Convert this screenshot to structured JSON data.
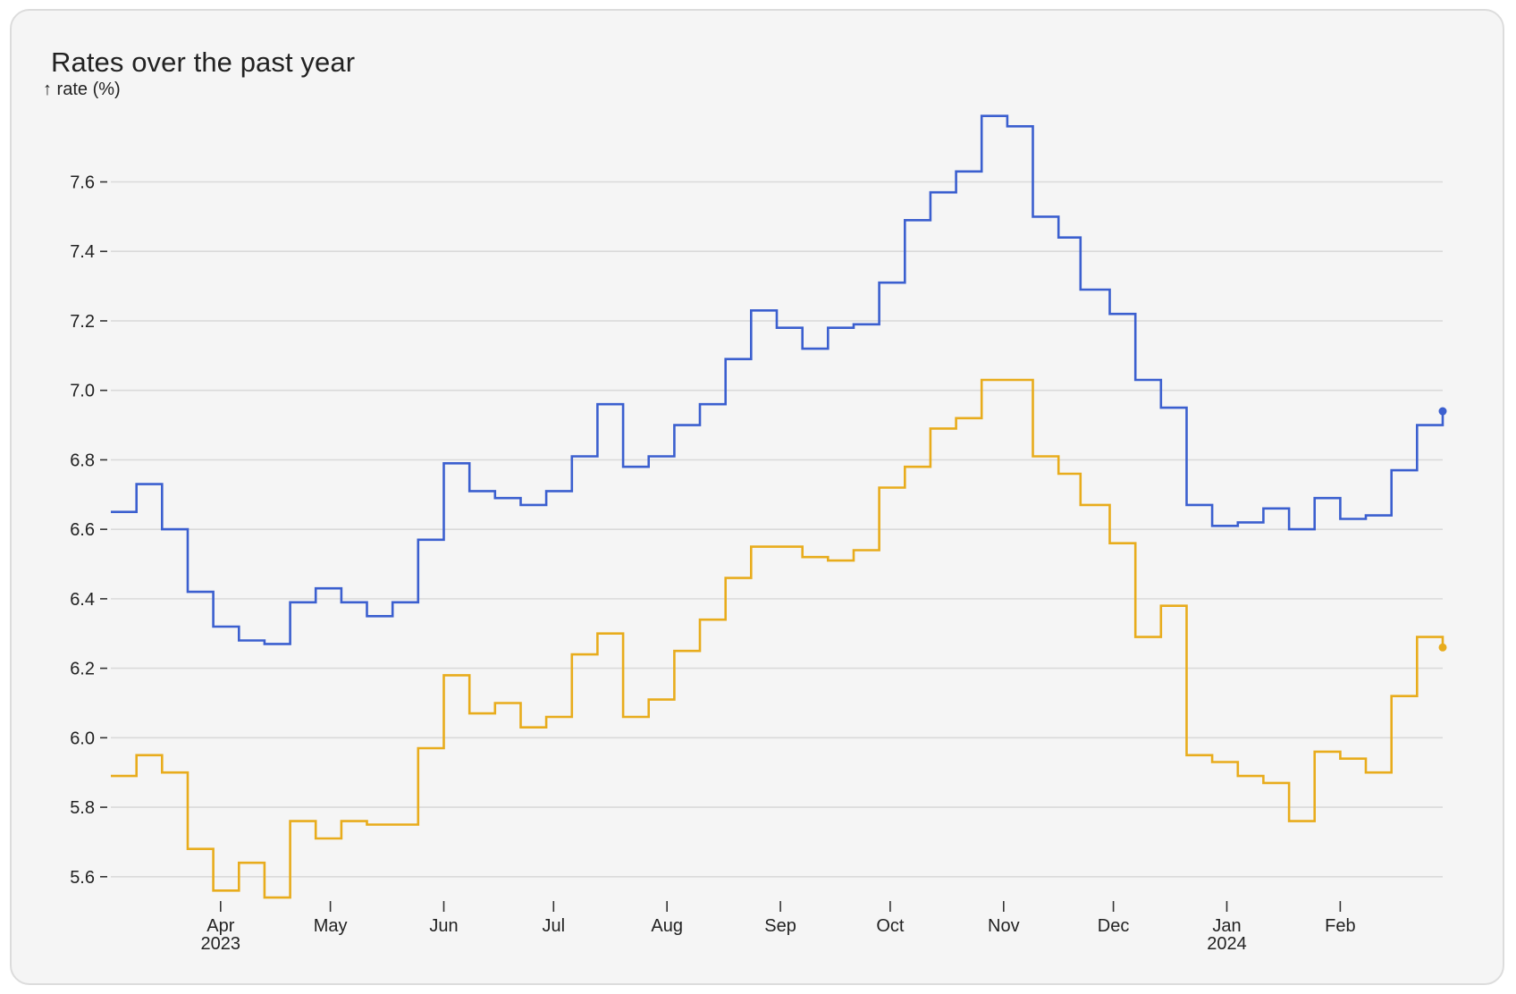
{
  "chart_data": {
    "type": "line",
    "curve": "step-after",
    "title": "Rates over the past year",
    "ylabel": "↑ rate (%)",
    "xlabel": "",
    "ylim": [
      5.53,
      7.82
    ],
    "xlim": [
      "2023-03-02",
      "2024-02-29"
    ],
    "grid": {
      "horizontal": true,
      "vertical": false
    },
    "legend": "none",
    "y_ticks": [
      5.6,
      5.8,
      6.0,
      6.2,
      6.4,
      6.6,
      6.8,
      7.0,
      7.2,
      7.4,
      7.6
    ],
    "y_tick_labels": [
      "5.6",
      "5.8",
      "6.0",
      "6.2",
      "6.4",
      "6.6",
      "6.8",
      "7.0",
      "7.2",
      "7.4",
      "7.6"
    ],
    "x_ticks": [
      {
        "date": "2023-04-01",
        "label": "Apr",
        "sublabel": "2023"
      },
      {
        "date": "2023-05-01",
        "label": "May",
        "sublabel": ""
      },
      {
        "date": "2023-06-01",
        "label": "Jun",
        "sublabel": ""
      },
      {
        "date": "2023-07-01",
        "label": "Jul",
        "sublabel": ""
      },
      {
        "date": "2023-08-01",
        "label": "Aug",
        "sublabel": ""
      },
      {
        "date": "2023-09-01",
        "label": "Sep",
        "sublabel": ""
      },
      {
        "date": "2023-10-01",
        "label": "Oct",
        "sublabel": ""
      },
      {
        "date": "2023-11-01",
        "label": "Nov",
        "sublabel": ""
      },
      {
        "date": "2023-12-01",
        "label": "Dec",
        "sublabel": ""
      },
      {
        "date": "2024-01-01",
        "label": "Jan",
        "sublabel": "2024"
      },
      {
        "date": "2024-02-01",
        "label": "Feb",
        "sublabel": ""
      }
    ],
    "x": [
      "2023-03-02",
      "2023-03-09",
      "2023-03-16",
      "2023-03-23",
      "2023-03-30",
      "2023-04-06",
      "2023-04-13",
      "2023-04-20",
      "2023-04-27",
      "2023-05-04",
      "2023-05-11",
      "2023-05-18",
      "2023-05-25",
      "2023-06-01",
      "2023-06-08",
      "2023-06-15",
      "2023-06-22",
      "2023-06-29",
      "2023-07-06",
      "2023-07-13",
      "2023-07-20",
      "2023-07-27",
      "2023-08-03",
      "2023-08-10",
      "2023-08-17",
      "2023-08-24",
      "2023-08-31",
      "2023-09-07",
      "2023-09-14",
      "2023-09-21",
      "2023-09-28",
      "2023-10-05",
      "2023-10-12",
      "2023-10-19",
      "2023-10-26",
      "2023-11-02",
      "2023-11-09",
      "2023-11-16",
      "2023-11-22",
      "2023-11-30",
      "2023-12-07",
      "2023-12-14",
      "2023-12-21",
      "2023-12-28",
      "2024-01-04",
      "2024-01-11",
      "2024-01-18",
      "2024-01-25",
      "2024-02-01",
      "2024-02-08",
      "2024-02-15",
      "2024-02-22",
      "2024-02-29"
    ],
    "series": [
      {
        "color": "#3b5fcf",
        "values": [
          6.65,
          6.73,
          6.6,
          6.42,
          6.32,
          6.28,
          6.27,
          6.39,
          6.43,
          6.39,
          6.35,
          6.39,
          6.57,
          6.79,
          6.71,
          6.69,
          6.67,
          6.71,
          6.81,
          6.96,
          6.78,
          6.81,
          6.9,
          6.96,
          7.09,
          7.23,
          7.18,
          7.12,
          7.18,
          7.19,
          7.31,
          7.49,
          7.57,
          7.63,
          7.79,
          7.76,
          7.5,
          7.44,
          7.29,
          7.22,
          7.03,
          6.95,
          6.67,
          6.61,
          6.62,
          6.66,
          6.6,
          6.69,
          6.63,
          6.64,
          6.77,
          6.9,
          6.94
        ]
      },
      {
        "color": "#e8ac1c",
        "values": [
          5.89,
          5.95,
          5.9,
          5.68,
          5.56,
          5.64,
          5.54,
          5.76,
          5.71,
          5.76,
          5.75,
          5.75,
          5.97,
          6.18,
          6.07,
          6.1,
          6.03,
          6.06,
          6.24,
          6.3,
          6.06,
          6.11,
          6.25,
          6.34,
          6.46,
          6.55,
          6.55,
          6.52,
          6.51,
          6.54,
          6.72,
          6.78,
          6.89,
          6.92,
          7.03,
          7.03,
          6.81,
          6.76,
          6.67,
          6.56,
          6.29,
          6.38,
          5.95,
          5.93,
          5.89,
          5.87,
          5.76,
          5.96,
          5.94,
          5.9,
          6.12,
          6.29,
          6.26
        ]
      }
    ]
  }
}
